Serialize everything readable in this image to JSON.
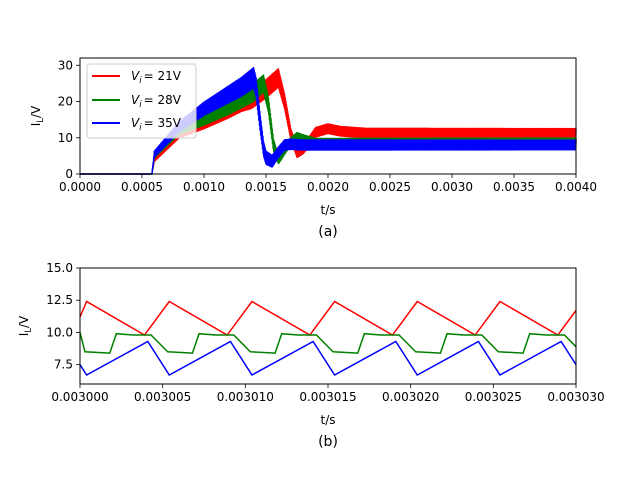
{
  "chart_data": [
    {
      "type": "line",
      "panel_label": "(a)",
      "xlabel": "t/s",
      "ylabel": "I_L/V",
      "xlim": [
        0.0,
        0.004
      ],
      "ylim": [
        0,
        32
      ],
      "xticks": [
        "0.0000",
        "0.0005",
        "0.0010",
        "0.0015",
        "0.0020",
        "0.0025",
        "0.0030",
        "0.0035",
        "0.0040"
      ],
      "xtick_values": [
        0.0,
        0.0005,
        0.001,
        0.0015,
        0.002,
        0.0025,
        0.003,
        0.0035,
        0.004
      ],
      "yticks": [
        "0",
        "10",
        "20",
        "30"
      ],
      "ytick_values": [
        0,
        10,
        20,
        30
      ],
      "legend": {
        "position": "upper-left"
      },
      "grid": false,
      "series": [
        {
          "name": "V_i=21V",
          "legend_text": "= 21V",
          "color": "#ff0000",
          "center": [
            [
              0,
              0
            ],
            [
              0.00058,
              0
            ],
            [
              0.0006,
              4
            ],
            [
              0.0008,
              11
            ],
            [
              0.001,
              14
            ],
            [
              0.0012,
              17.5
            ],
            [
              0.0013,
              19.5
            ],
            [
              0.00138,
              20.5
            ],
            [
              0.0015,
              23.5
            ],
            [
              0.0016,
              26.5
            ],
            [
              0.00165,
              20
            ],
            [
              0.0017,
              11
            ],
            [
              0.00175,
              6
            ],
            [
              0.0018,
              7
            ],
            [
              0.00185,
              9
            ],
            [
              0.0019,
              11.5
            ],
            [
              0.002,
              12.5
            ],
            [
              0.0021,
              11.8
            ],
            [
              0.0023,
              11.3
            ],
            [
              0.004,
              11.2
            ]
          ],
          "ripple": [
            [
              0,
              0
            ],
            [
              0.00058,
              0
            ],
            [
              0.0006,
              0.5
            ],
            [
              0.0014,
              2.5
            ],
            [
              0.0016,
              2.5
            ],
            [
              0.0017,
              1.5
            ],
            [
              0.0019,
              1.3
            ],
            [
              0.004,
              1.3
            ]
          ]
        },
        {
          "name": "V_i=28V",
          "legend_text": "= 28V",
          "color": "#008000",
          "center": [
            [
              0,
              0
            ],
            [
              0.00058,
              0
            ],
            [
              0.0006,
              5
            ],
            [
              0.0008,
              12
            ],
            [
              0.001,
              15
            ],
            [
              0.0012,
              18.5
            ],
            [
              0.0014,
              22.5
            ],
            [
              0.00148,
              25
            ],
            [
              0.00152,
              19
            ],
            [
              0.00156,
              8
            ],
            [
              0.0016,
              4
            ],
            [
              0.00165,
              6.5
            ],
            [
              0.0017,
              9
            ],
            [
              0.00175,
              10.5
            ],
            [
              0.0018,
              10
            ],
            [
              0.0019,
              9
            ],
            [
              0.004,
              9.1
            ]
          ],
          "ripple": [
            [
              0,
              0
            ],
            [
              0.00058,
              0
            ],
            [
              0.0006,
              0.5
            ],
            [
              0.0014,
              2.5
            ],
            [
              0.0015,
              2.2
            ],
            [
              0.0016,
              1.2
            ],
            [
              0.0018,
              0.8
            ],
            [
              0.004,
              0.8
            ]
          ]
        },
        {
          "name": "V_i=35V",
          "legend_text": "= 35V",
          "color": "#0000ff",
          "center": [
            [
              0,
              0
            ],
            [
              0.00058,
              0
            ],
            [
              0.0006,
              5.5
            ],
            [
              0.0008,
              13
            ],
            [
              0.001,
              18
            ],
            [
              0.0012,
              22
            ],
            [
              0.0013,
              24
            ],
            [
              0.0014,
              26.5
            ],
            [
              0.00142,
              24
            ],
            [
              0.00145,
              15
            ],
            [
              0.00148,
              7
            ],
            [
              0.0015,
              4.5
            ],
            [
              0.00155,
              3.5
            ],
            [
              0.0016,
              6
            ],
            [
              0.00165,
              8
            ],
            [
              0.0017,
              8.2
            ],
            [
              0.0018,
              8
            ],
            [
              0.004,
              8
            ]
          ],
          "ripple": [
            [
              0,
              0
            ],
            [
              0.00058,
              0
            ],
            [
              0.0006,
              0.8
            ],
            [
              0.0014,
              2.8
            ],
            [
              0.0015,
              1.8
            ],
            [
              0.0016,
              1.4
            ],
            [
              0.004,
              1.3
            ]
          ]
        }
      ]
    },
    {
      "type": "line",
      "panel_label": "(b)",
      "xlabel": "t/s",
      "ylabel": "I_L/V",
      "xlim": [
        0.003,
        0.00303
      ],
      "ylim": [
        6.0,
        15.0
      ],
      "xticks": [
        "0.003000",
        "0.003005",
        "0.003010",
        "0.003015",
        "0.003020",
        "0.003025",
        "0.003030"
      ],
      "xtick_values": [
        0.003,
        0.003005,
        0.00301,
        0.003015,
        0.00302,
        0.003025,
        0.00303
      ],
      "yticks": [
        "7.5",
        "10.0",
        "12.5",
        "15.0"
      ],
      "ytick_values": [
        7.5,
        10.0,
        12.5,
        15.0
      ],
      "grid": false,
      "period": 5e-06,
      "series": [
        {
          "name": "V_i=21V",
          "color": "#ff0000",
          "cycle": [
            [
              4e-07,
              12.4
            ],
            [
              3.9e-06,
              9.8
            ]
          ],
          "start": [
            [
              0.003,
              11.2
            ]
          ]
        },
        {
          "name": "V_i=28V",
          "color": "#008000",
          "cycle": [
            [
              3e-07,
              8.5
            ],
            [
              1.8e-06,
              8.4
            ],
            [
              2.2e-06,
              9.9
            ],
            [
              3.2e-06,
              9.8
            ],
            [
              3.6e-06,
              9.8
            ],
            [
              4.3e-06,
              9.8
            ]
          ],
          "start": [
            [
              0.003,
              10.0
            ]
          ]
        },
        {
          "name": "V_i=35V",
          "color": "#0000ff",
          "cycle": [
            [
              4e-07,
              6.7
            ],
            [
              4.1e-06,
              9.3
            ]
          ],
          "start": [
            [
              0.003,
              7.5
            ]
          ]
        }
      ]
    }
  ]
}
